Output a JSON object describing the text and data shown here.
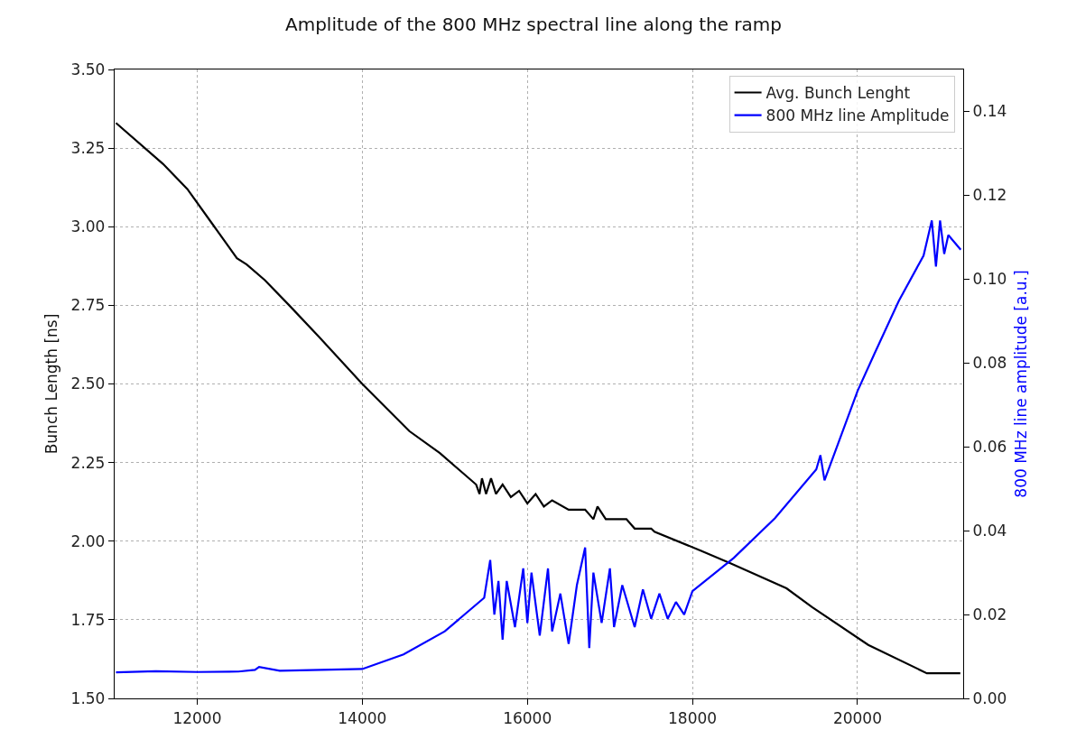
{
  "chart_data": {
    "type": "line",
    "title": "Amplitude of the 800 MHz spectral line along the ramp",
    "ylabel": "Bunch Length [ns]",
    "y2label": "800 MHz line amplitude [a.u.]",
    "xlim": [
      11000,
      21280
    ],
    "xticks": [
      12000,
      14000,
      16000,
      18000,
      20000
    ],
    "ylim": [
      1.5,
      3.5
    ],
    "yticks": [
      {
        "value": 1.5,
        "label": "1.50"
      },
      {
        "value": 1.75,
        "label": "1.75"
      },
      {
        "value": 2.0,
        "label": "2.00"
      },
      {
        "value": 2.25,
        "label": "2.25"
      },
      {
        "value": 2.5,
        "label": "2.50"
      },
      {
        "value": 2.75,
        "label": "2.75"
      },
      {
        "value": 3.0,
        "label": "3.00"
      },
      {
        "value": 3.25,
        "label": "3.25"
      },
      {
        "value": 3.5,
        "label": "3.50"
      }
    ],
    "y2lim": [
      0,
      0.15
    ],
    "y2ticks": [
      {
        "value": 0,
        "label": "0.00"
      },
      {
        "value": 0.02,
        "label": "0.02"
      },
      {
        "value": 0.04,
        "label": "0.04"
      },
      {
        "value": 0.06,
        "label": "0.06"
      },
      {
        "value": 0.08,
        "label": "0.08"
      },
      {
        "value": 0.1,
        "label": "0.10"
      },
      {
        "value": 0.12,
        "label": "0.12"
      },
      {
        "value": 0.14,
        "label": "0.14"
      }
    ],
    "grid": true,
    "legend": "top right",
    "marker": "none",
    "line_style": "solid",
    "series": [
      {
        "name": "Avg. Bunch Lenght",
        "color": "#000000",
        "x": [
          11016,
          11585,
          11880,
          12208,
          12481,
          12600,
          12820,
          13115,
          13475,
          14000,
          14570,
          14940,
          15380,
          15420,
          15450,
          15500,
          15560,
          15620,
          15700,
          15800,
          15900,
          16000,
          16100,
          16200,
          16300,
          16500,
          16700,
          16800,
          16850,
          16950,
          17200,
          17300,
          17500,
          17540,
          18100,
          18460,
          19140,
          19450,
          20130,
          20840,
          21245
        ],
        "values": [
          3.33,
          3.2,
          3.12,
          3.0,
          2.9,
          2.88,
          2.83,
          2.75,
          2.65,
          2.5,
          2.35,
          2.28,
          2.18,
          2.15,
          2.2,
          2.15,
          2.2,
          2.15,
          2.18,
          2.14,
          2.16,
          2.12,
          2.15,
          2.11,
          2.13,
          2.1,
          2.1,
          2.07,
          2.11,
          2.07,
          2.07,
          2.04,
          2.04,
          2.03,
          1.97,
          1.93,
          1.85,
          1.79,
          1.67,
          1.58,
          1.58
        ]
      },
      {
        "name": "800 MHz line Amplitude",
        "color": "#0000ff",
        "axis": "y2",
        "x": [
          11016,
          11500,
          12000,
          12500,
          12700,
          12750,
          13000,
          13500,
          14000,
          14500,
          15000,
          15477,
          15550,
          15600,
          15650,
          15700,
          15750,
          15850,
          15950,
          16000,
          16050,
          16150,
          16250,
          16300,
          16400,
          16500,
          16600,
          16700,
          16750,
          16800,
          16900,
          17000,
          17050,
          17150,
          17300,
          17400,
          17500,
          17600,
          17700,
          17800,
          17900,
          18000,
          18500,
          19000,
          19500,
          19550,
          19600,
          20000,
          20200,
          20500,
          20800,
          20900,
          20950,
          21000,
          21050,
          21100,
          21250
        ],
        "values": [
          0.0062,
          0.0065,
          0.0063,
          0.0064,
          0.0068,
          0.0075,
          0.0066,
          0.0068,
          0.007,
          0.0105,
          0.016,
          0.024,
          0.033,
          0.02,
          0.028,
          0.014,
          0.028,
          0.017,
          0.031,
          0.018,
          0.03,
          0.015,
          0.031,
          0.016,
          0.025,
          0.013,
          0.027,
          0.036,
          0.012,
          0.03,
          0.018,
          0.031,
          0.017,
          0.027,
          0.017,
          0.026,
          0.019,
          0.025,
          0.019,
          0.023,
          0.02,
          0.0256,
          0.0335,
          0.043,
          0.0546,
          0.058,
          0.052,
          0.0733,
          0.082,
          0.0948,
          0.1056,
          0.114,
          0.103,
          0.114,
          0.106,
          0.1105,
          0.107
        ]
      }
    ]
  }
}
